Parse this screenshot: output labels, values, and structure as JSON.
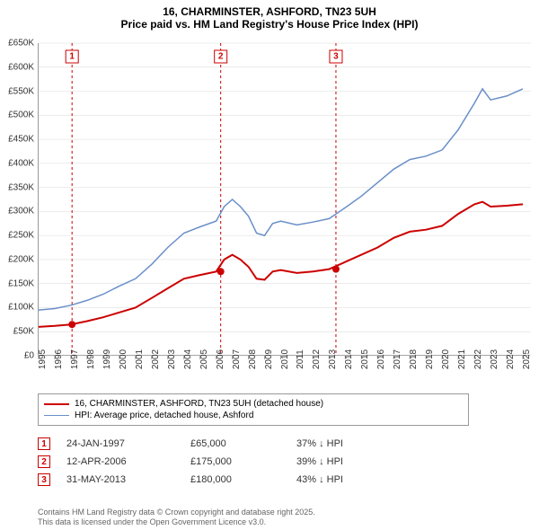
{
  "title": {
    "line1": "16, CHARMINSTER, ASHFORD, TN23 5UH",
    "line2": "Price paid vs. HM Land Registry's House Price Index (HPI)"
  },
  "chart": {
    "type": "line",
    "background_color": "#ffffff",
    "grid_color": "#d9d9d9",
    "axis_color": "#999999",
    "x": {
      "min": 1995,
      "max": 2025.5,
      "ticks": [
        1995,
        1996,
        1997,
        1998,
        1999,
        2000,
        2001,
        2002,
        2003,
        2004,
        2005,
        2006,
        2007,
        2008,
        2009,
        2010,
        2011,
        2012,
        2013,
        2014,
        2015,
        2016,
        2017,
        2018,
        2019,
        2020,
        2021,
        2022,
        2023,
        2024,
        2025
      ],
      "label_fontsize": 10
    },
    "y": {
      "min": 0,
      "max": 650,
      "ticks": [
        0,
        50,
        100,
        150,
        200,
        250,
        300,
        350,
        400,
        450,
        500,
        550,
        600,
        650
      ],
      "tick_labels": [
        "£0",
        "£50K",
        "£100K",
        "£150K",
        "£200K",
        "£250K",
        "£300K",
        "£350K",
        "£400K",
        "£450K",
        "£500K",
        "£550K",
        "£600K",
        "£650K"
      ],
      "label_fontsize": 10
    },
    "series": [
      {
        "id": "price_paid",
        "label": "16, CHARMINSTER, ASHFORD, TN23 5UH (detached house)",
        "color": "#cc0000",
        "line_width": 2,
        "points": [
          [
            1995,
            60
          ],
          [
            1996,
            62
          ],
          [
            1997,
            65
          ],
          [
            1998,
            72
          ],
          [
            1999,
            80
          ],
          [
            2000,
            90
          ],
          [
            2001,
            100
          ],
          [
            2002,
            120
          ],
          [
            2003,
            140
          ],
          [
            2004,
            160
          ],
          [
            2005,
            168
          ],
          [
            2006,
            175
          ],
          [
            2006.5,
            200
          ],
          [
            2007,
            210
          ],
          [
            2007.5,
            200
          ],
          [
            2008,
            185
          ],
          [
            2008.5,
            160
          ],
          [
            2009,
            158
          ],
          [
            2009.5,
            175
          ],
          [
            2010,
            178
          ],
          [
            2011,
            172
          ],
          [
            2012,
            175
          ],
          [
            2013,
            180
          ],
          [
            2014,
            195
          ],
          [
            2015,
            210
          ],
          [
            2016,
            225
          ],
          [
            2017,
            245
          ],
          [
            2018,
            258
          ],
          [
            2019,
            262
          ],
          [
            2020,
            270
          ],
          [
            2021,
            295
          ],
          [
            2022,
            315
          ],
          [
            2022.5,
            320
          ],
          [
            2023,
            310
          ],
          [
            2024,
            312
          ],
          [
            2025,
            315
          ]
        ]
      },
      {
        "id": "hpi",
        "label": "HPI: Average price, detached house, Ashford",
        "color": "#6a8fc9",
        "line_width": 1.5,
        "points": [
          [
            1995,
            95
          ],
          [
            1996,
            98
          ],
          [
            1997,
            105
          ],
          [
            1998,
            115
          ],
          [
            1999,
            128
          ],
          [
            2000,
            145
          ],
          [
            2001,
            160
          ],
          [
            2002,
            190
          ],
          [
            2003,
            225
          ],
          [
            2004,
            255
          ],
          [
            2005,
            268
          ],
          [
            2006,
            280
          ],
          [
            2006.5,
            310
          ],
          [
            2007,
            325
          ],
          [
            2007.5,
            310
          ],
          [
            2008,
            290
          ],
          [
            2008.5,
            255
          ],
          [
            2009,
            250
          ],
          [
            2009.5,
            275
          ],
          [
            2010,
            280
          ],
          [
            2011,
            272
          ],
          [
            2012,
            278
          ],
          [
            2013,
            285
          ],
          [
            2014,
            308
          ],
          [
            2015,
            332
          ],
          [
            2016,
            360
          ],
          [
            2017,
            388
          ],
          [
            2018,
            408
          ],
          [
            2019,
            415
          ],
          [
            2020,
            428
          ],
          [
            2021,
            470
          ],
          [
            2022,
            525
          ],
          [
            2022.5,
            555
          ],
          [
            2023,
            532
          ],
          [
            2024,
            540
          ],
          [
            2025,
            555
          ]
        ]
      }
    ],
    "events": [
      {
        "num": "1",
        "x": 1997.07,
        "color": "#cc0000"
      },
      {
        "num": "2",
        "x": 2006.28,
        "color": "#cc0000"
      },
      {
        "num": "3",
        "x": 2013.42,
        "color": "#cc0000"
      }
    ],
    "series_markers": [
      {
        "x": 1997.07,
        "y": 65,
        "color": "#cc0000"
      },
      {
        "x": 2006.28,
        "y": 175,
        "color": "#cc0000"
      },
      {
        "x": 2013.42,
        "y": 180,
        "color": "#cc0000"
      }
    ]
  },
  "legend": {
    "items": [
      {
        "color": "#cc0000",
        "width": 2,
        "label": "16, CHARMINSTER, ASHFORD, TN23 5UH (detached house)"
      },
      {
        "color": "#6a8fc9",
        "width": 1.5,
        "label": "HPI: Average price, detached house, Ashford"
      }
    ]
  },
  "transactions": [
    {
      "num": "1",
      "color": "#cc0000",
      "date": "24-JAN-1997",
      "price": "£65,000",
      "hpi": "37% ↓ HPI"
    },
    {
      "num": "2",
      "color": "#cc0000",
      "date": "12-APR-2006",
      "price": "£175,000",
      "hpi": "39% ↓ HPI"
    },
    {
      "num": "3",
      "color": "#cc0000",
      "date": "31-MAY-2013",
      "price": "£180,000",
      "hpi": "43% ↓ HPI"
    }
  ],
  "footer": {
    "line1": "Contains HM Land Registry data © Crown copyright and database right 2025.",
    "line2": "This data is licensed under the Open Government Licence v3.0."
  }
}
